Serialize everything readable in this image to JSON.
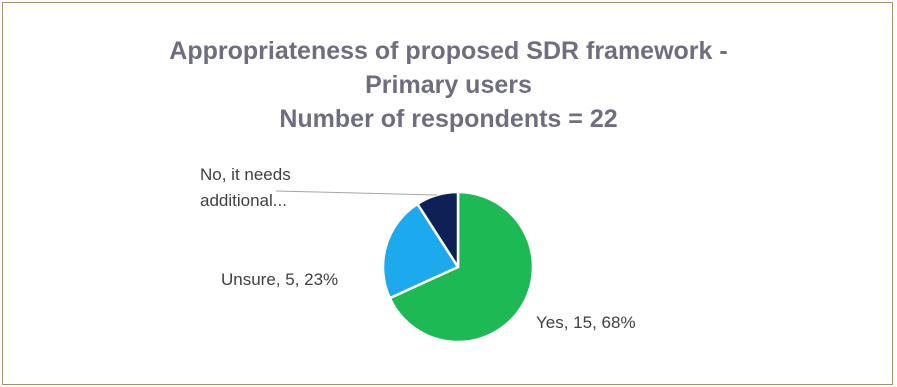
{
  "chart_data": {
    "type": "pie",
    "title_lines": [
      "Appropriateness of proposed SDR framework -",
      "Primary users",
      "Number of respondents = 22"
    ],
    "slices": [
      {
        "label": "Yes",
        "value": 15,
        "percent": "68%",
        "display": "Yes, 15, 68%",
        "color": "#1db954"
      },
      {
        "label": "Unsure",
        "value": 5,
        "percent": "23%",
        "display": "Unsure, 5, 23%",
        "color": "#1ca9ee"
      },
      {
        "label": "No, it needs additional...",
        "value": 2,
        "percent": "9%",
        "display_lines": [
          "No, it needs",
          "additional..."
        ],
        "color": "#0d2157"
      }
    ],
    "total": 22,
    "legend": "none",
    "border_color": "#b08d6a",
    "title_color": "#6e6e80"
  }
}
